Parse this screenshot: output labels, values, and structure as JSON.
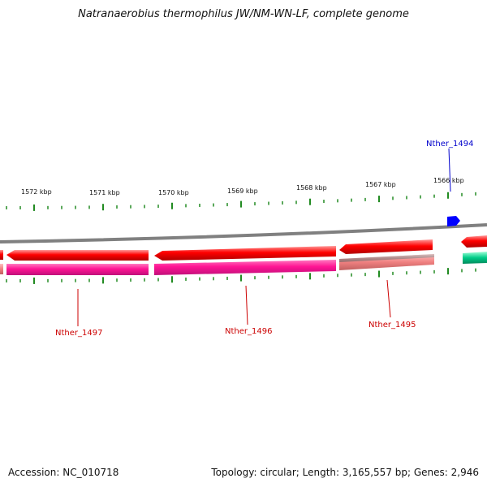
{
  "title": "Natranaerobius thermophilus JW/NM-WN-LF, complete genome",
  "footer": {
    "accession": "Accession: NC_010718",
    "summary": "Topology: circular; Length: 3,165,557 bp; Genes: 2,946"
  },
  "scale_labels": [
    "1572 kbp",
    "1571 kbp",
    "1570 kbp",
    "1569 kbp",
    "1568 kbp",
    "1567 kbp",
    "1566 kbp"
  ],
  "gene_labels": {
    "top": [
      "Nther_1494"
    ],
    "bottom": [
      "Nther_1497",
      "Nther_1496",
      "Nther_1495"
    ]
  },
  "colors": {
    "backbone": "#808080",
    "cds": "#ff0000",
    "gene_magenta": "#ff1493",
    "gene_pink": "#f08080",
    "gene_green": "#00cc88",
    "gene_blue": "#0000ff",
    "tick": "#228b22",
    "label_red": "#cc0000",
    "label_blue": "#0000cc"
  }
}
